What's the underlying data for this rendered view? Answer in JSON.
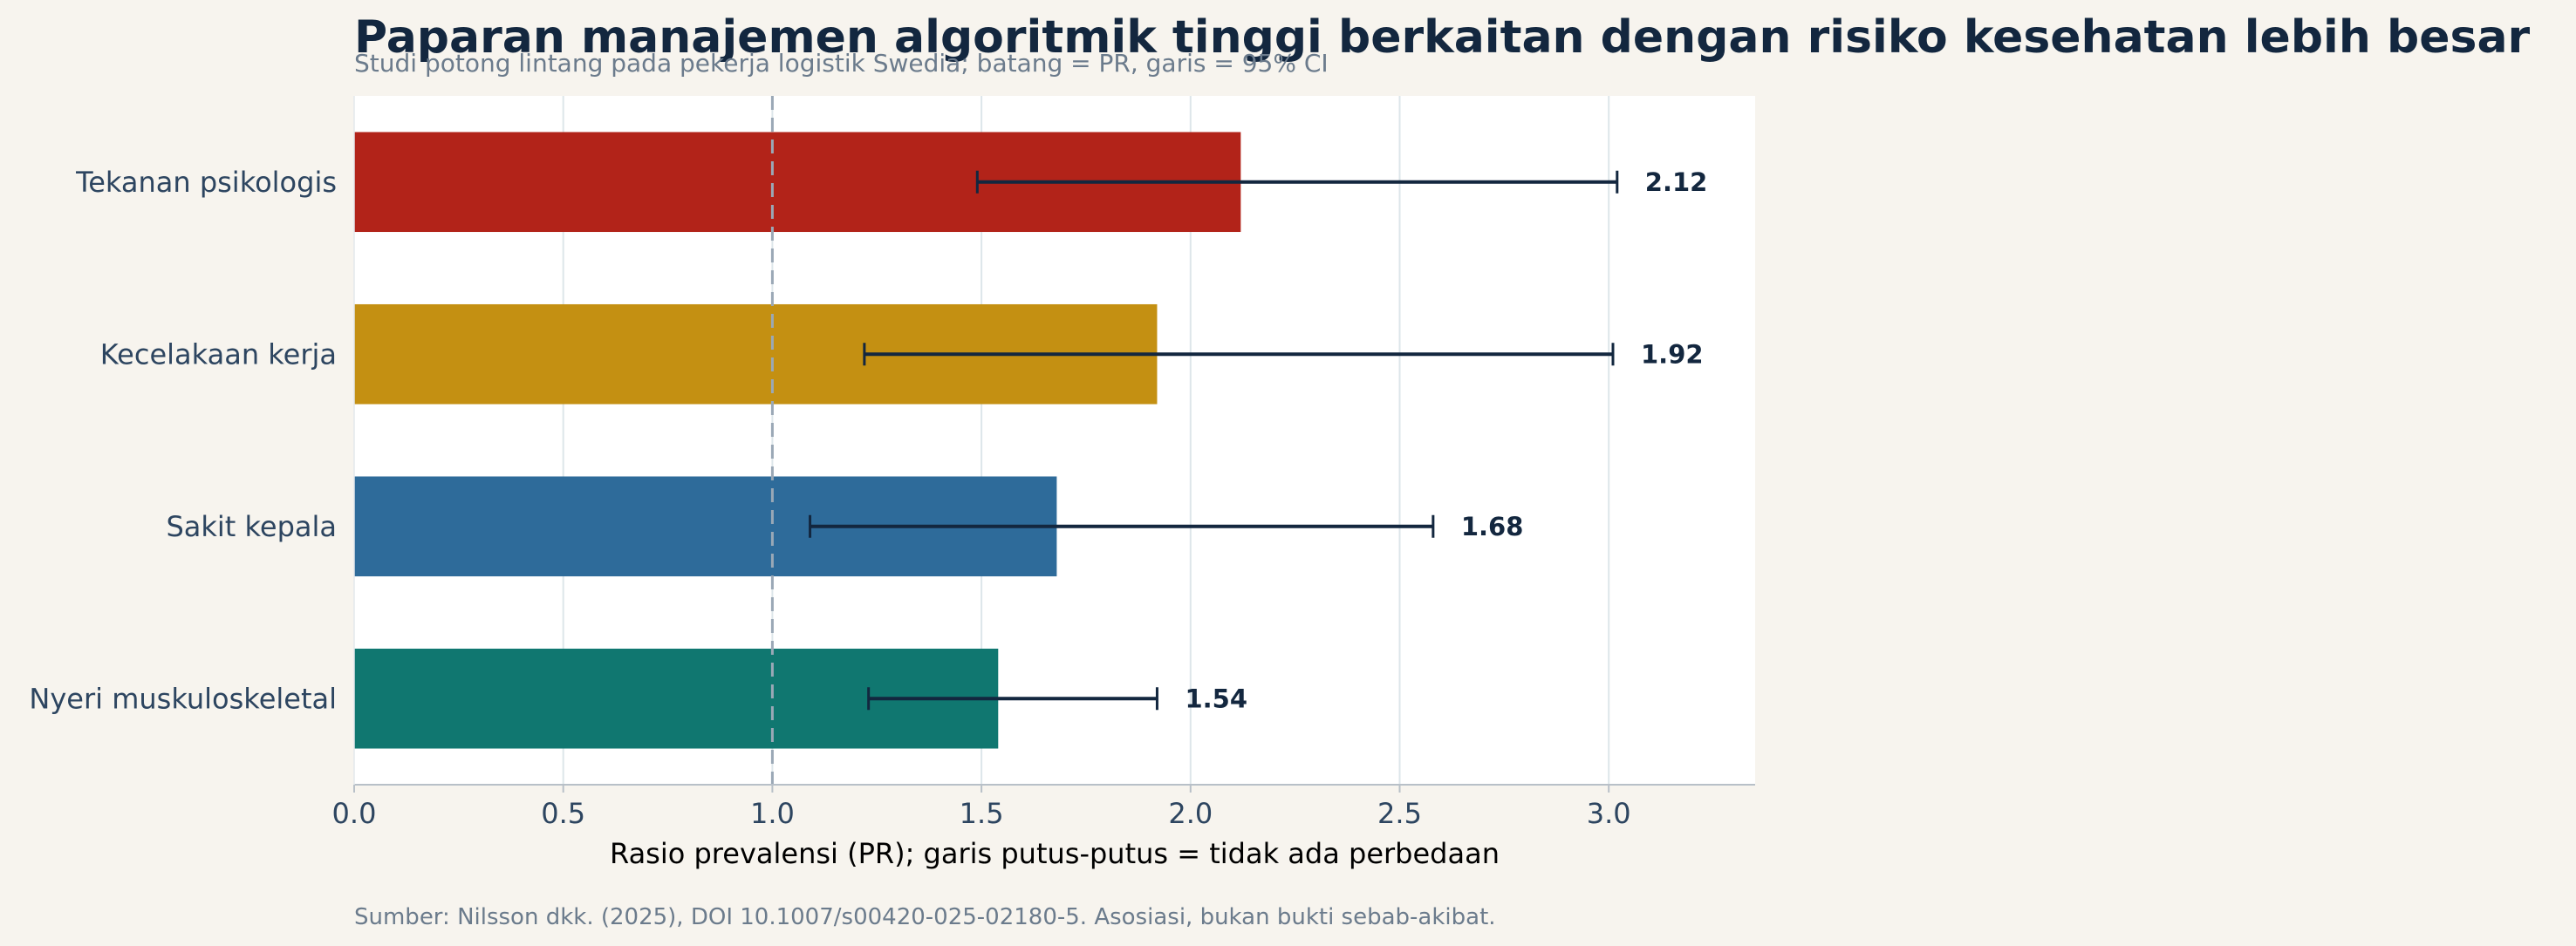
{
  "chart_data": {
    "type": "bar",
    "orientation": "horizontal",
    "title": "Paparan manajemen algoritmik tinggi berkaitan dengan risiko kesehatan lebih besar",
    "subtitle": "Studi potong lintang pada pekerja logistik Swedia; batang = PR, garis = 95% CI",
    "xlabel": "Rasio prevalensi (PR); garis putus-putus = tidak ada perbedaan",
    "source": "Sumber: Nilsson dkk. (2025), DOI 10.1007/s00420-025-02180-5. Asosiasi, bukan bukti sebab-akibat.",
    "xlim": [
      0,
      3.35
    ],
    "xticks": [
      0.0,
      0.5,
      1.0,
      1.5,
      2.0,
      2.5,
      3.0
    ],
    "xtick_labels": [
      "0.0",
      "0.5",
      "1.0",
      "1.5",
      "2.0",
      "2.5",
      "3.0"
    ],
    "reference_line": 1.0,
    "grid": "vertical",
    "categories": [
      "Tekanan psikologis",
      "Kecelakaan kerja",
      "Sakit kepala",
      "Nyeri muskuloskeletal"
    ],
    "values": [
      2.12,
      1.92,
      1.68,
      1.54
    ],
    "value_labels": [
      "2.12",
      "1.92",
      "1.68",
      "1.54"
    ],
    "ci_lower": [
      1.49,
      1.22,
      1.09,
      1.23
    ],
    "ci_upper": [
      3.02,
      3.01,
      2.58,
      1.92
    ],
    "colors": [
      "#b22319",
      "#c49012",
      "#2e6b9a",
      "#107770"
    ]
  }
}
